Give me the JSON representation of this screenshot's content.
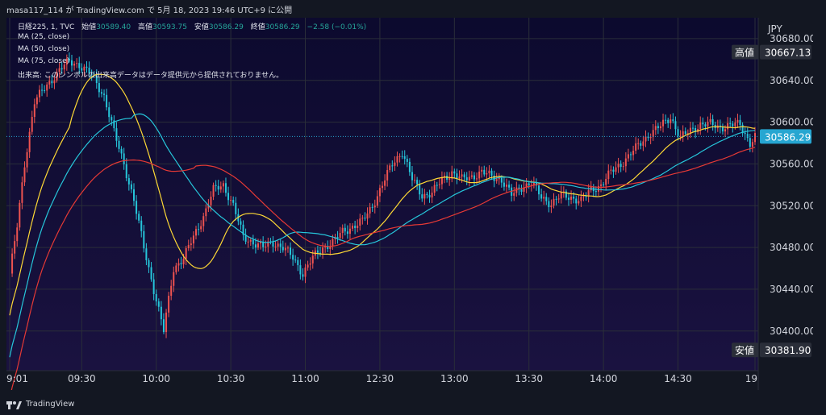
{
  "header": {
    "publisher": "masa117_114 が TradingView.com で 5月 18, 2023 19:46 UTC+9 に公開"
  },
  "legend": {
    "symbol": "日経225, 1, TVC",
    "open_label": "始値",
    "open_value": "30589.40",
    "high_label": "高値",
    "high_value": "30593.75",
    "low_label": "安値",
    "low_value": "30586.29",
    "close_label": "終値",
    "close_value": "30586.29",
    "change": "−2.58 (−0.01%)",
    "ma25": "MA (25, close)",
    "ma50": "MA (50, close)",
    "ma75": "MA (75, close)",
    "volume_note": "出来高: このシンボルの出来高データはデータ提供元から提供されておりません。"
  },
  "footer": {
    "logo_text": "TradingView"
  },
  "colors": {
    "background_top": "#131722",
    "plot_top": "#0c0a2e",
    "plot_bottom": "#1a1240",
    "up": "#ef5350",
    "down": "#26c6da",
    "ma25": "#fdd835",
    "ma50": "#26c6da",
    "ma75": "#e53935",
    "last_price_tag": "#26a6d1",
    "high_low_tag": "#2a2e39"
  },
  "chart_data": {
    "type": "candlestick",
    "currency": "JPY",
    "y_ticks": [
      30680,
      30640,
      30600,
      30560,
      30520,
      30480,
      30440,
      30400
    ],
    "ylim": [
      30362,
      30700
    ],
    "x_ticks": [
      "9:01",
      "09:30",
      "10:00",
      "10:30",
      "11:00",
      "12:30",
      "13:00",
      "13:30",
      "14:00",
      "14:30",
      "19"
    ],
    "x_tick_bar_index": [
      0,
      29,
      59,
      89,
      119,
      149,
      179,
      209,
      239,
      269,
      300
    ],
    "high_tag": {
      "label": "高値",
      "value": "30667.13"
    },
    "low_tag": {
      "label": "安値",
      "value": "30381.90"
    },
    "last_price_tag": {
      "value": "30586.29"
    },
    "close_path": [
      [
        0,
        30455
      ],
      [
        3,
        30500
      ],
      [
        6,
        30560
      ],
      [
        10,
        30620
      ],
      [
        15,
        30635
      ],
      [
        20,
        30650
      ],
      [
        24,
        30658
      ],
      [
        28,
        30655
      ],
      [
        33,
        30645
      ],
      [
        38,
        30625
      ],
      [
        42,
        30590
      ],
      [
        46,
        30560
      ],
      [
        50,
        30525
      ],
      [
        54,
        30480
      ],
      [
        58,
        30440
      ],
      [
        62,
        30400
      ],
      [
        66,
        30460
      ],
      [
        70,
        30470
      ],
      [
        74,
        30490
      ],
      [
        78,
        30510
      ],
      [
        82,
        30535
      ],
      [
        86,
        30540
      ],
      [
        90,
        30520
      ],
      [
        94,
        30490
      ],
      [
        98,
        30485
      ],
      [
        102,
        30480
      ],
      [
        106,
        30485
      ],
      [
        110,
        30480
      ],
      [
        114,
        30470
      ],
      [
        118,
        30455
      ],
      [
        122,
        30470
      ],
      [
        126,
        30480
      ],
      [
        130,
        30485
      ],
      [
        134,
        30495
      ],
      [
        138,
        30500
      ],
      [
        142,
        30505
      ],
      [
        146,
        30520
      ],
      [
        150,
        30540
      ],
      [
        154,
        30560
      ],
      [
        158,
        30572
      ],
      [
        162,
        30545
      ],
      [
        166,
        30530
      ],
      [
        170,
        30532
      ],
      [
        174,
        30545
      ],
      [
        178,
        30552
      ],
      [
        182,
        30545
      ],
      [
        186,
        30548
      ],
      [
        190,
        30552
      ],
      [
        194,
        30548
      ],
      [
        198,
        30545
      ],
      [
        202,
        30530
      ],
      [
        206,
        30538
      ],
      [
        210,
        30542
      ],
      [
        214,
        30528
      ],
      [
        218,
        30522
      ],
      [
        222,
        30530
      ],
      [
        226,
        30528
      ],
      [
        230,
        30525
      ],
      [
        234,
        30535
      ],
      [
        238,
        30540
      ],
      [
        242,
        30552
      ],
      [
        246,
        30560
      ],
      [
        250,
        30570
      ],
      [
        254,
        30580
      ],
      [
        258,
        30590
      ],
      [
        262,
        30596
      ],
      [
        266,
        30605
      ],
      [
        270,
        30585
      ],
      [
        274,
        30592
      ],
      [
        278,
        30598
      ],
      [
        282,
        30598
      ],
      [
        286,
        30595
      ],
      [
        290,
        30597
      ],
      [
        294,
        30598
      ],
      [
        298,
        30580
      ],
      [
        300,
        30586
      ]
    ]
  }
}
